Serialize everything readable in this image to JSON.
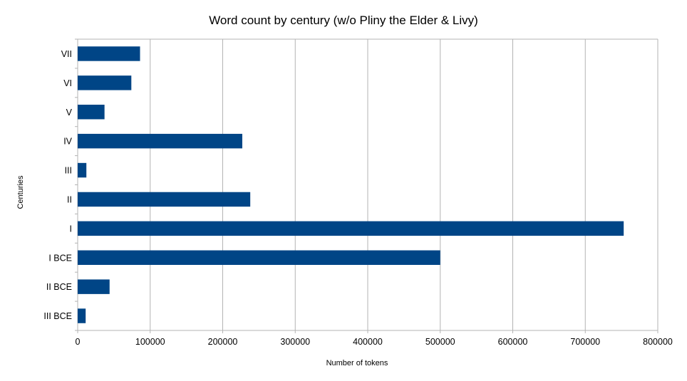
{
  "chart_data": {
    "type": "bar",
    "orientation": "horizontal",
    "title": "Word count by century (w/o Pliny the Elder & Livy)",
    "xlabel": "Number of tokens",
    "ylabel": "Centuries",
    "categories": [
      "VII",
      "VI",
      "V",
      "IV",
      "III",
      "II",
      "I",
      "I BCE",
      "II BCE",
      "III BCE"
    ],
    "values": [
      86000,
      74000,
      37000,
      227000,
      12000,
      238000,
      753000,
      500000,
      44000,
      11000
    ],
    "xlim": [
      0,
      800000
    ],
    "xticks": [
      0,
      100000,
      200000,
      300000,
      400000,
      500000,
      600000,
      700000,
      800000
    ],
    "xtick_labels": [
      "0",
      "100000",
      "200000",
      "300000",
      "400000",
      "500000",
      "600000",
      "700000",
      "800000"
    ],
    "grid": "vertical",
    "legend": "none",
    "bar_color": "#004586"
  }
}
